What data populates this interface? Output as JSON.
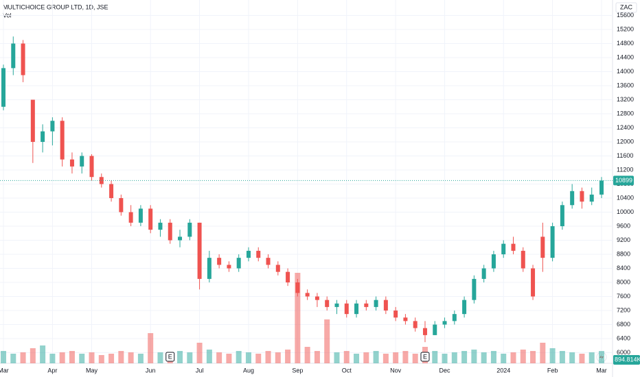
{
  "chart_data": {
    "type": "candlestick",
    "title": "MULTICHOICE GROUP LTD, 1D, JSE",
    "volume_title": "Vol",
    "currency": "ZAC",
    "categories": [
      "Mar",
      null,
      null,
      null,
      null,
      "Apr",
      null,
      null,
      null,
      "May",
      null,
      null,
      null,
      null,
      null,
      "Jun",
      null,
      null,
      null,
      null,
      "Jul",
      null,
      null,
      null,
      null,
      "Aug",
      null,
      null,
      null,
      null,
      "Sep",
      null,
      null,
      null,
      null,
      "Oct",
      null,
      null,
      null,
      null,
      "Nov",
      null,
      null,
      null,
      null,
      "Dec",
      null,
      null,
      null,
      null,
      null,
      "2024",
      null,
      null,
      null,
      null,
      "Feb",
      null,
      null,
      null,
      null,
      "Mar"
    ],
    "open": [
      13000,
      14100,
      14800,
      13200,
      12000,
      12300,
      12600,
      11500,
      11300,
      11600,
      11000,
      10800,
      10400,
      10000,
      9700,
      10100,
      9500,
      9700,
      9200,
      9300,
      9700,
      8100,
      8700,
      8500,
      8400,
      8700,
      8900,
      8700,
      8500,
      8300,
      8000,
      7700,
      7600,
      7500,
      7300,
      7400,
      7100,
      7400,
      7300,
      7500,
      7200,
      7000,
      6900,
      6700,
      6500,
      6800,
      6900,
      7100,
      7500,
      8100,
      8400,
      8800,
      9100,
      8900,
      8400,
      9300,
      8700,
      9600,
      10200,
      10600,
      10300,
      10500
    ],
    "high": [
      14200,
      15000,
      14900,
      13200,
      12500,
      12700,
      12700,
      11700,
      11700,
      11650,
      11100,
      10900,
      10500,
      10200,
      10200,
      10200,
      9800,
      9800,
      9500,
      9800,
      9700,
      8900,
      8800,
      8600,
      8800,
      9000,
      9000,
      8800,
      8600,
      8400,
      8100,
      7800,
      7700,
      7600,
      7500,
      7500,
      7500,
      7500,
      7600,
      7600,
      7300,
      7100,
      7000,
      6900,
      6900,
      7000,
      7200,
      7600,
      8200,
      8500,
      8900,
      9200,
      9300,
      9000,
      8500,
      9700,
      9700,
      10300,
      10800,
      10700,
      10700,
      11000
    ],
    "low": [
      12900,
      13900,
      13700,
      11400,
      11700,
      11900,
      11300,
      11100,
      11100,
      10900,
      10700,
      10300,
      9900,
      9600,
      9600,
      9400,
      9300,
      9100,
      9000,
      9200,
      7800,
      8000,
      8400,
      8300,
      8300,
      8600,
      8600,
      8400,
      8200,
      7900,
      7600,
      7500,
      7300,
      7200,
      7100,
      7000,
      7000,
      7200,
      7200,
      7100,
      6900,
      6800,
      6600,
      6300,
      6500,
      6700,
      6800,
      7000,
      7400,
      8000,
      8300,
      8700,
      8800,
      8300,
      7500,
      8300,
      8600,
      9500,
      10100,
      10100,
      10200,
      10400
    ],
    "close": [
      14100,
      14800,
      13900,
      12000,
      12300,
      12600,
      11500,
      11300,
      11600,
      11000,
      10800,
      10400,
      10000,
      9700,
      10100,
      9500,
      9700,
      9200,
      9300,
      9700,
      8100,
      8700,
      8500,
      8400,
      8700,
      8900,
      8700,
      8500,
      8300,
      8000,
      7700,
      7600,
      7500,
      7300,
      7400,
      7100,
      7400,
      7300,
      7500,
      7200,
      7000,
      6900,
      6700,
      6500,
      6800,
      6900,
      7100,
      7500,
      8100,
      8400,
      8800,
      9100,
      8900,
      8400,
      7600,
      8700,
      9600,
      10200,
      10600,
      10300,
      10500,
      10899
    ],
    "volume": [
      900000,
      700000,
      800000,
      1100000,
      1300000,
      700000,
      800000,
      900000,
      700000,
      800000,
      600000,
      700000,
      900000,
      800000,
      700000,
      2200000,
      800000,
      700000,
      900000,
      800000,
      1500000,
      1000000,
      800000,
      700000,
      900000,
      800000,
      700000,
      900000,
      800000,
      1000000,
      6600000,
      1200000,
      900000,
      3200000,
      800000,
      900000,
      700000,
      800000,
      900000,
      700000,
      800000,
      900000,
      700000,
      1200000,
      900000,
      700000,
      800000,
      900000,
      1000000,
      800000,
      900000,
      700000,
      800000,
      1000000,
      900000,
      1500000,
      1100000,
      900000,
      800000,
      700000,
      800000,
      894814
    ],
    "last_volume": {
      "value": 894814,
      "label": "894.814K"
    },
    "last_price": 10899,
    "volume_lim": [
      0,
      8000000
    ],
    "earnings": {
      "label": "E",
      "candles": [
        17,
        43
      ]
    },
    "ylim": [
      5698,
      16039
    ],
    "yticks": [
      6000,
      6400,
      6800,
      7200,
      7600,
      8000,
      8400,
      8800,
      9200,
      9600,
      10000,
      10400,
      10800,
      11200,
      11600,
      12000,
      12400,
      12800,
      13200,
      13600,
      14000,
      14400,
      14800,
      15200,
      15600
    ],
    "up_color": "#26a69a",
    "down_color": "#ef5350",
    "grid": true
  }
}
